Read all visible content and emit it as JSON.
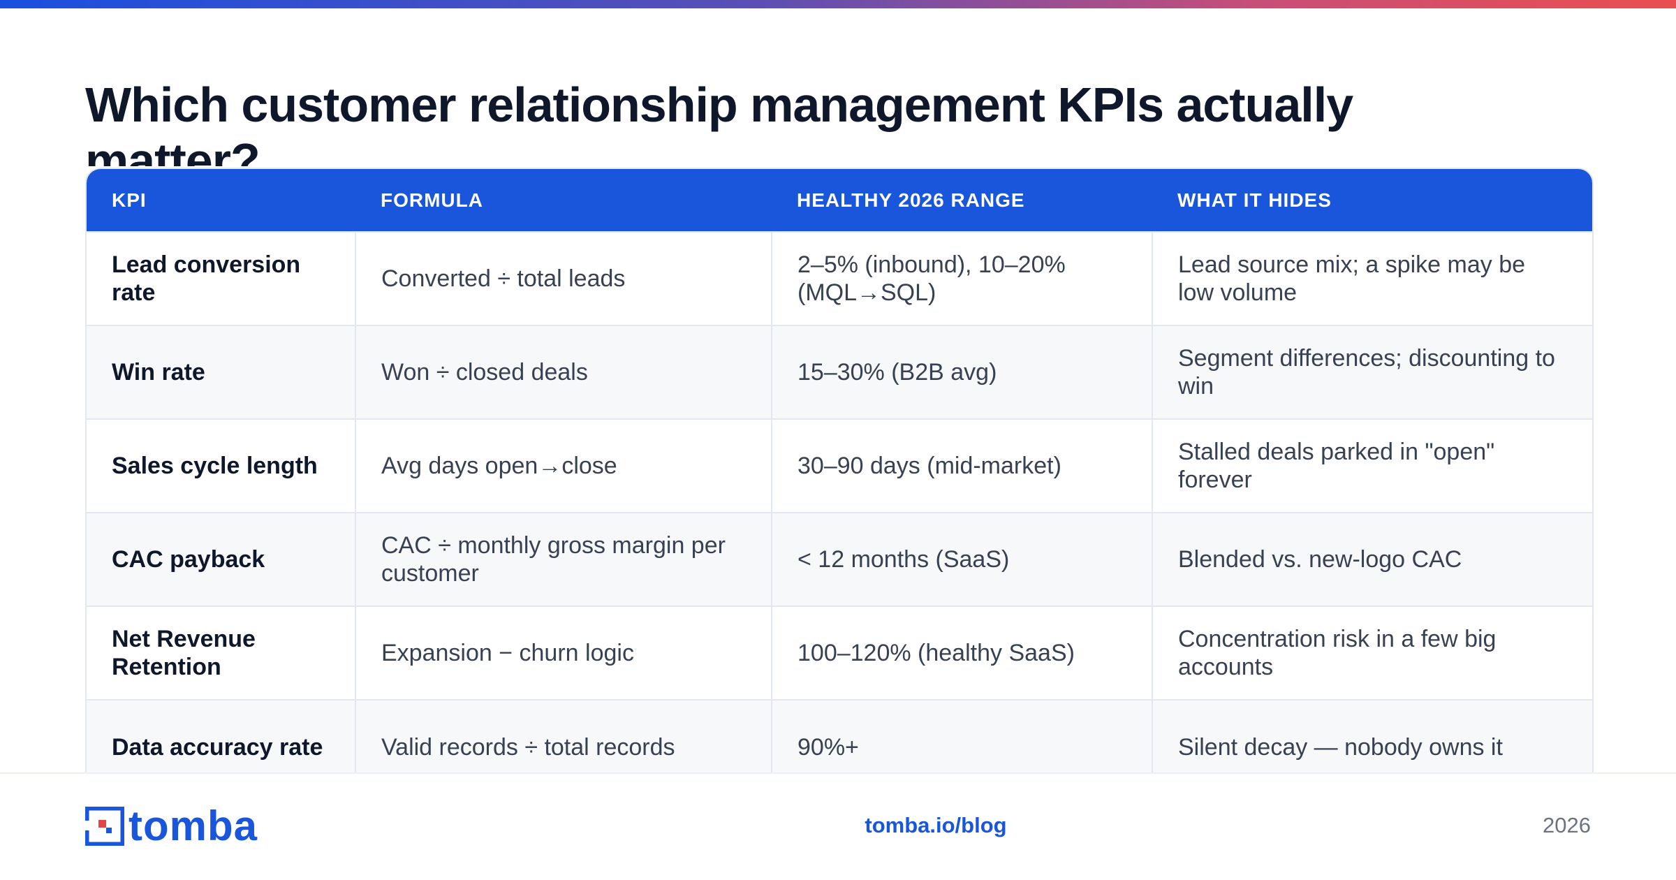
{
  "title": "Which customer relationship management KPIs actually matter?",
  "table": {
    "headers": [
      "KPI",
      "FORMULA",
      "HEALTHY 2026 RANGE",
      "WHAT IT HIDES"
    ],
    "rows": [
      {
        "kpi": "Lead conversion rate",
        "formula": "Converted ÷ total leads",
        "range": "2–5% (inbound), 10–20% (MQL→SQL)",
        "hides": "Lead source mix; a spike may be low volume"
      },
      {
        "kpi": "Win rate",
        "formula": "Won ÷ closed deals",
        "range": "15–30% (B2B avg)",
        "hides": "Segment differences; discounting to win"
      },
      {
        "kpi": "Sales cycle length",
        "formula": "Avg days open→close",
        "range": "30–90 days (mid-market)",
        "hides": "Stalled deals parked in \"open\" forever"
      },
      {
        "kpi": "CAC payback",
        "formula": "CAC ÷ monthly gross margin per customer",
        "range": "< 12 months (SaaS)",
        "hides": "Blended vs. new-logo CAC"
      },
      {
        "kpi": "Net Revenue Retention",
        "formula": "Expansion − churn logic",
        "range": "100–120% (healthy SaaS)",
        "hides": "Concentration risk in a few big accounts"
      },
      {
        "kpi": "Data accuracy rate",
        "formula": "Valid records ÷ total records",
        "range": "90%+",
        "hides": "Silent decay — nobody owns it"
      }
    ]
  },
  "footer": {
    "logo_text": "tomba",
    "logo_icon": "tomba-logo-mark-icon",
    "link": "tomba.io/blog",
    "year": "2026"
  },
  "colors": {
    "accent": "#1a56db",
    "title": "#0f172a",
    "gradient_start": "#1a4fe0",
    "gradient_end": "#ea4f4f"
  }
}
